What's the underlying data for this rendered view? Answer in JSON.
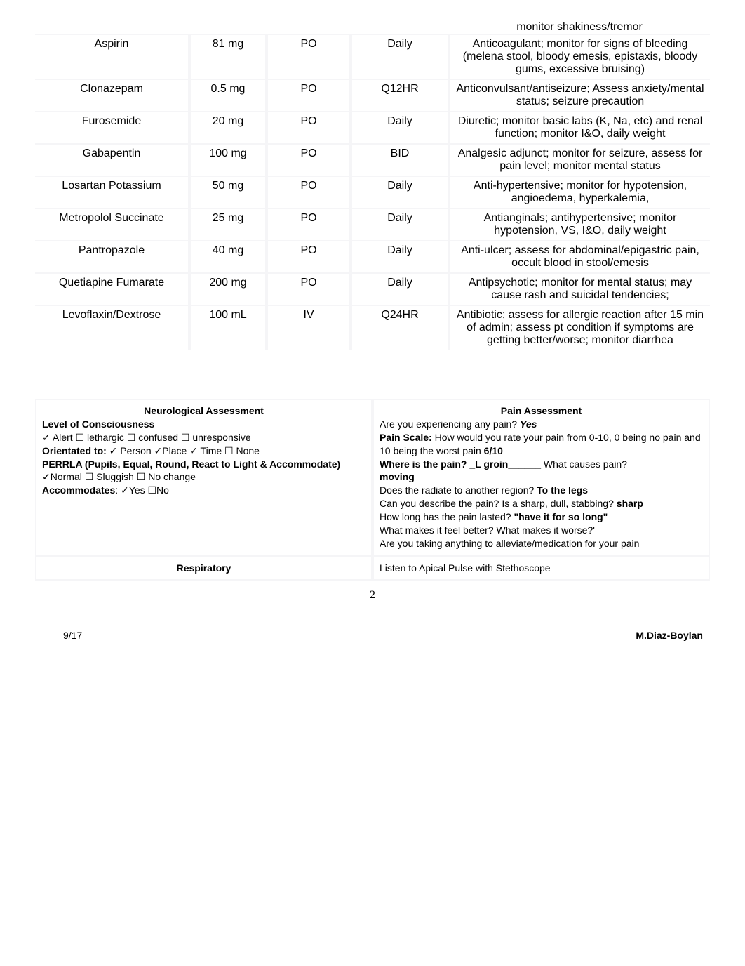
{
  "meds": {
    "pre_note": "monitor shakiness/tremor",
    "rows": [
      {
        "drug": "Aspirin",
        "dose": "81 mg",
        "route": "PO",
        "freq": "Daily",
        "notes": "Anticoagulant; monitor for signs of bleeding (melena stool, bloody emesis, epistaxis, bloody gums, excessive bruising)"
      },
      {
        "drug": "Clonazepam",
        "dose": "0.5 mg",
        "route": "PO",
        "freq": "Q12HR",
        "notes": "Anticonvulsant/antiseizure; Assess anxiety/mental status; seizure precaution"
      },
      {
        "drug": "Furosemide",
        "dose": "20 mg",
        "route": "PO",
        "freq": "Daily",
        "notes": "Diuretic; monitor basic labs (K, Na, etc) and renal function; monitor I&O, daily weight"
      },
      {
        "drug": "Gabapentin",
        "dose": "100 mg",
        "route": "PO",
        "freq": "BID",
        "notes": "Analgesic adjunct; monitor for seizure, assess for pain level; monitor mental status"
      },
      {
        "drug": "Losartan Potassium",
        "dose": "50 mg",
        "route": "PO",
        "freq": "Daily",
        "notes": "Anti-hypertensive; monitor for hypotension, angioedema, hyperkalemia,"
      },
      {
        "drug": "Metropolol Succinate",
        "dose": "25 mg",
        "route": "PO",
        "freq": "Daily",
        "notes": "Antianginals; antihypertensive; monitor hypotension, VS, I&O, daily weight"
      },
      {
        "drug": "Pantropazole",
        "dose": "40 mg",
        "route": "PO",
        "freq": "Daily",
        "notes": "Anti-ulcer; assess for abdominal/epigastric pain, occult blood in stool/emesis"
      },
      {
        "drug": "Quetiapine Fumarate",
        "dose": "200 mg",
        "route": "PO",
        "freq": "Daily",
        "notes": "Antipsychotic; monitor for mental status; may cause rash and suicidal tendencies;"
      },
      {
        "drug": "Levoflaxin/Dextrose",
        "dose": "100 mL",
        "route": "IV",
        "freq": "Q24HR",
        "notes": "Antibiotic; assess for allergic reaction after 15 min of admin; assess pt condition if symptoms are getting better/worse; monitor diarrhea"
      }
    ]
  },
  "neuro": {
    "heading": "Neurological Assessment",
    "loc_label": "Level of Consciousness",
    "loc_line": "✓ Alert ☐ lethargic ☐ confused ☐ unresponsive",
    "orient_label": "Orientated to:",
    "orient_line": "  ✓ Person ✓Place ✓ Time ☐ None",
    "perrla_line1": "PERRLA (Pupils, Equal, Round, React to Light & Accommodate)",
    "perrla_line2": "✓Normal  ☐ Sluggish  ☐ No change",
    "accom_label": "Accommodates",
    "accom_line": ": ✓Yes   ☐No"
  },
  "pain": {
    "heading": "Pain Assessment",
    "q1_pre": "Are you experiencing any pain? ",
    "q1_ans": "Yes",
    "scale_label": "Pain Scale:",
    "scale_text": " How would you rate your pain from 0-10, 0 being no pain and 10 being the worst pain ",
    "scale_val": "6/10",
    "where_label": "Where is the pain? ",
    "where_ans": "_L groin______",
    "where_tail": " What causes pain? ",
    "cause_ans": "moving",
    "radiate_pre": "Does the radiate to another region? ",
    "radiate_ans": "To the legs",
    "describe_pre": "Can you describe the pain? Is a sharp, dull, stabbing? ",
    "describe_ans": "sharp",
    "duration_pre": "How long has the pain lasted? ",
    "duration_ans": "\"have it for so long\"",
    "better": "What makes it feel better? What makes it worse?'",
    "alleviate": "Are you taking anything to alleviate/medication for your pain"
  },
  "row2": {
    "left": "Respiratory",
    "right": "Listen to Apical Pulse with Stethoscope"
  },
  "page_num": "2",
  "footer_left": "9/17",
  "footer_right": "M.Diaz-Boylan"
}
